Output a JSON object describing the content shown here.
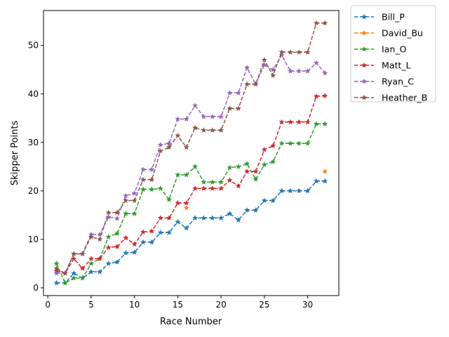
{
  "chart_data": {
    "type": "line",
    "xlabel": "Race Number",
    "ylabel": "Skipper Points",
    "xlim": [
      -0.5,
      33.6
    ],
    "ylim": [
      -1.6,
      57.2
    ],
    "xticks": [
      0,
      5,
      10,
      15,
      20,
      25,
      30
    ],
    "yticks": [
      0,
      10,
      20,
      30,
      40,
      50
    ],
    "grid": false,
    "legend_placement": "outside-top-right",
    "marker": "star",
    "linestyle": "dashed",
    "x": [
      1,
      2,
      3,
      4,
      5,
      6,
      7,
      8,
      9,
      10,
      11,
      12,
      13,
      14,
      15,
      16,
      17,
      18,
      19,
      20,
      21,
      22,
      23,
      24,
      25,
      26,
      27,
      28,
      29,
      30,
      31,
      32
    ],
    "series": [
      {
        "name": "Bill_P",
        "color": "#1f77b4",
        "values": [
          1,
          1,
          3,
          2,
          3.3,
          3.3,
          5,
          5.3,
          7.2,
          7.3,
          9.4,
          9.4,
          11.4,
          11.4,
          13.6,
          12.3,
          14.4,
          14.4,
          14.4,
          14.4,
          15.3,
          14,
          16,
          16,
          18,
          18,
          20,
          20,
          20,
          20,
          22,
          22
        ]
      },
      {
        "name": "David_Bu",
        "color": "#ff7f0e",
        "values": [
          null,
          null,
          null,
          null,
          null,
          null,
          null,
          null,
          null,
          null,
          null,
          null,
          null,
          null,
          null,
          16.5,
          null,
          null,
          null,
          null,
          null,
          null,
          null,
          null,
          null,
          null,
          null,
          null,
          null,
          null,
          null,
          24
        ]
      },
      {
        "name": "Ian_O",
        "color": "#2ca02c",
        "values": [
          5,
          1,
          2,
          2,
          5,
          6,
          10.5,
          11.2,
          15.3,
          15.3,
          20.3,
          20.3,
          20.5,
          18.2,
          23.3,
          23.3,
          25,
          21.8,
          21.8,
          21.8,
          24.8,
          25,
          25.6,
          22.4,
          25.4,
          26,
          29.8,
          29.8,
          29.8,
          29.8,
          33.8,
          33.8
        ]
      },
      {
        "name": "Matt_L",
        "color": "#d62728",
        "values": [
          3.5,
          3,
          6,
          4,
          6,
          6,
          8.3,
          8.5,
          10.3,
          9,
          11.5,
          11.7,
          14.4,
          14.4,
          17.5,
          17.5,
          20.5,
          20.5,
          20.5,
          20.5,
          22.2,
          21,
          24,
          24,
          28.5,
          29.3,
          34.2,
          34.2,
          34.2,
          34.2,
          39.5,
          39.6
        ]
      },
      {
        "name": "Ryan_C",
        "color": "#9467bd",
        "values": [
          3,
          3,
          7,
          7,
          11,
          11,
          14.6,
          14.3,
          19,
          19.5,
          24.4,
          24.4,
          29.5,
          29.8,
          34.8,
          34.8,
          37.6,
          35.3,
          35.3,
          35.3,
          40.2,
          40.2,
          45.4,
          42,
          46,
          45,
          48,
          44.7,
          44.7,
          44.7,
          46.4,
          44.3
        ]
      },
      {
        "name": "Heather_B",
        "color": "#8c564b",
        "values": [
          4,
          3,
          7,
          7,
          10.5,
          10,
          15.5,
          15.5,
          18,
          18,
          22.3,
          22.3,
          28.2,
          29,
          31.4,
          29,
          33,
          32.5,
          32.5,
          32.5,
          37,
          37,
          42,
          42,
          47,
          43.8,
          48.6,
          48.6,
          48.6,
          48.6,
          54.6,
          54.6
        ]
      }
    ]
  }
}
